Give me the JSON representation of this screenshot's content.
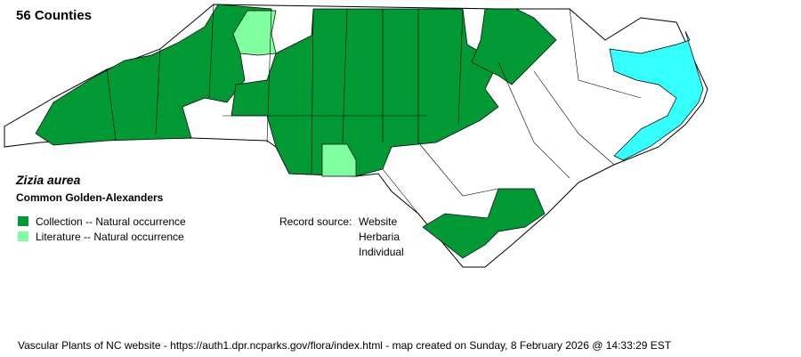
{
  "header": {
    "county_count": "56 Counties"
  },
  "species": {
    "scientific_name": "Zizia aurea",
    "common_name": "Common Golden-Alexanders"
  },
  "legend": [
    {
      "label": "Collection -- Natural occurrence",
      "color": "#009933"
    },
    {
      "label": "Literature -- Natural occurrence",
      "color": "#80ffa0"
    }
  ],
  "record_source": {
    "label": "Record source:",
    "values": [
      "Website",
      "Herbaria",
      "Individual"
    ]
  },
  "colors": {
    "water": "#33ffff",
    "outline": "#000000",
    "empty": "#ffffff"
  },
  "footer": "Vascular Plants of NC website - https://auth1.dpr.ncparks.gov/flora/index.html - map created on Sunday, 8 February 2026 @ 14:33:29 EST"
}
